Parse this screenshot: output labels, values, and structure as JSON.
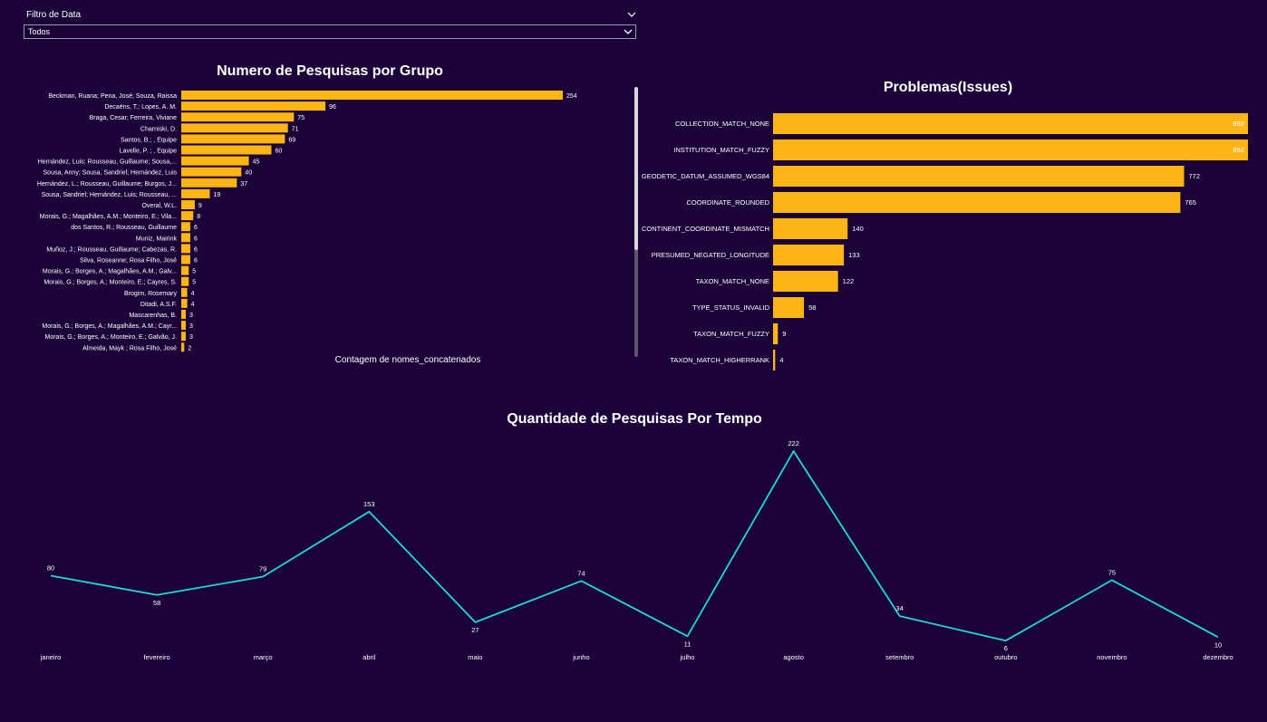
{
  "filter": {
    "title": "Filtro de Data",
    "selected": "Todos"
  },
  "colors": {
    "background": "#1b0238",
    "bar": "#fbb616",
    "line": "#22d8d6",
    "text": "#ffffff"
  },
  "icons": {
    "filter_collapse": "chevron-down-icon",
    "select_dropdown": "chevron-down-icon"
  },
  "chart_data": [
    {
      "type": "bar",
      "orientation": "horizontal",
      "title": "Numero de Pesquisas por Grupo",
      "xlabel": "Contagem de nomes_concatenados",
      "data_labels": true,
      "scrollable": true,
      "categories": [
        "Beckman, Ruana; Pena, José; Souza, Raissa",
        "Decaëns, T.; Lopes, A. M.",
        "Braga, Cesar; Ferreira, Viviane",
        "Charniski, D.",
        "Santos, B.; , Equipe",
        "Lavelle, P. ; , Equipe",
        "Hernández, Luis; Rousseau, Guillaume; Sousa,...",
        "Sousa, Anny; Sousa, Sandriel; Hernández, Luis",
        "Hernández, L.; Rousseau, Guillaume; Burgos, J...",
        "Sousa, Sandriel; Hernández, Luis; Rousseau, ...",
        "Overal, W.L.",
        "Morais, G.; Magalhães, A.M.; Monteiro, E.; Vila...",
        "dos Santos, R.; Rousseau, Guillaume",
        "Muniz, Mairink",
        "Muñoz, J.; Rousseau, Guillaume; Cabezas, R.",
        "Silva, Roseanne; Rosa Filho, José",
        "Morais, G.; Borges, A.; Magalhães, A.M.; Galv...",
        "Morais, G.; Borges, A.; Monteiro, E.; Cayres, S.",
        "Brogim, Rosemary",
        "Ditadi, A.S.F.",
        "Mascarenhas, B.",
        "Morais, G.; Borges, A.; Magalhães, A.M.; Cayr...",
        "Morais, G.; Borges, A.; Monteiro, E.; Galvão, J.",
        "Almeida, Mayk ; Rosa Filho, José"
      ],
      "values": [
        254,
        96,
        75,
        71,
        69,
        60,
        45,
        40,
        37,
        19,
        9,
        8,
        6,
        6,
        6,
        6,
        5,
        5,
        4,
        4,
        3,
        3,
        3,
        2
      ],
      "xlim": [
        0,
        254
      ]
    },
    {
      "type": "bar",
      "orientation": "horizontal",
      "title": "Problemas(Issues)",
      "data_labels": true,
      "categories": [
        "COLLECTION_MATCH_NONE",
        "INSTITUTION_MATCH_FUZZY",
        "GEODETIC_DATUM_ASSUMED_WGS84",
        "COORDINATE_ROUNDED",
        "CONTINENT_COORDINATE_MISMATCH",
        "PRESUMED_NEGATED_LONGITUDE",
        "TAXON_MATCH_NONE",
        "TYPE_STATUS_INVALID",
        "TAXON_MATCH_FUZZY",
        "TAXON_MATCH_HIGHERRANK"
      ],
      "values": [
        892,
        892,
        772,
        765,
        140,
        133,
        122,
        58,
        9,
        4
      ],
      "xlim": [
        0,
        892
      ]
    },
    {
      "type": "line",
      "title": "Quantidade de Pesquisas Por Tempo",
      "data_labels": true,
      "categories": [
        "janeiro",
        "fevereiro",
        "março",
        "abril",
        "maio",
        "junho",
        "julho",
        "agosto",
        "setembro",
        "outubro",
        "novembro",
        "dezembro"
      ],
      "values": [
        80,
        58,
        79,
        153,
        27,
        74,
        11,
        222,
        34,
        6,
        75,
        10
      ]
    }
  ]
}
